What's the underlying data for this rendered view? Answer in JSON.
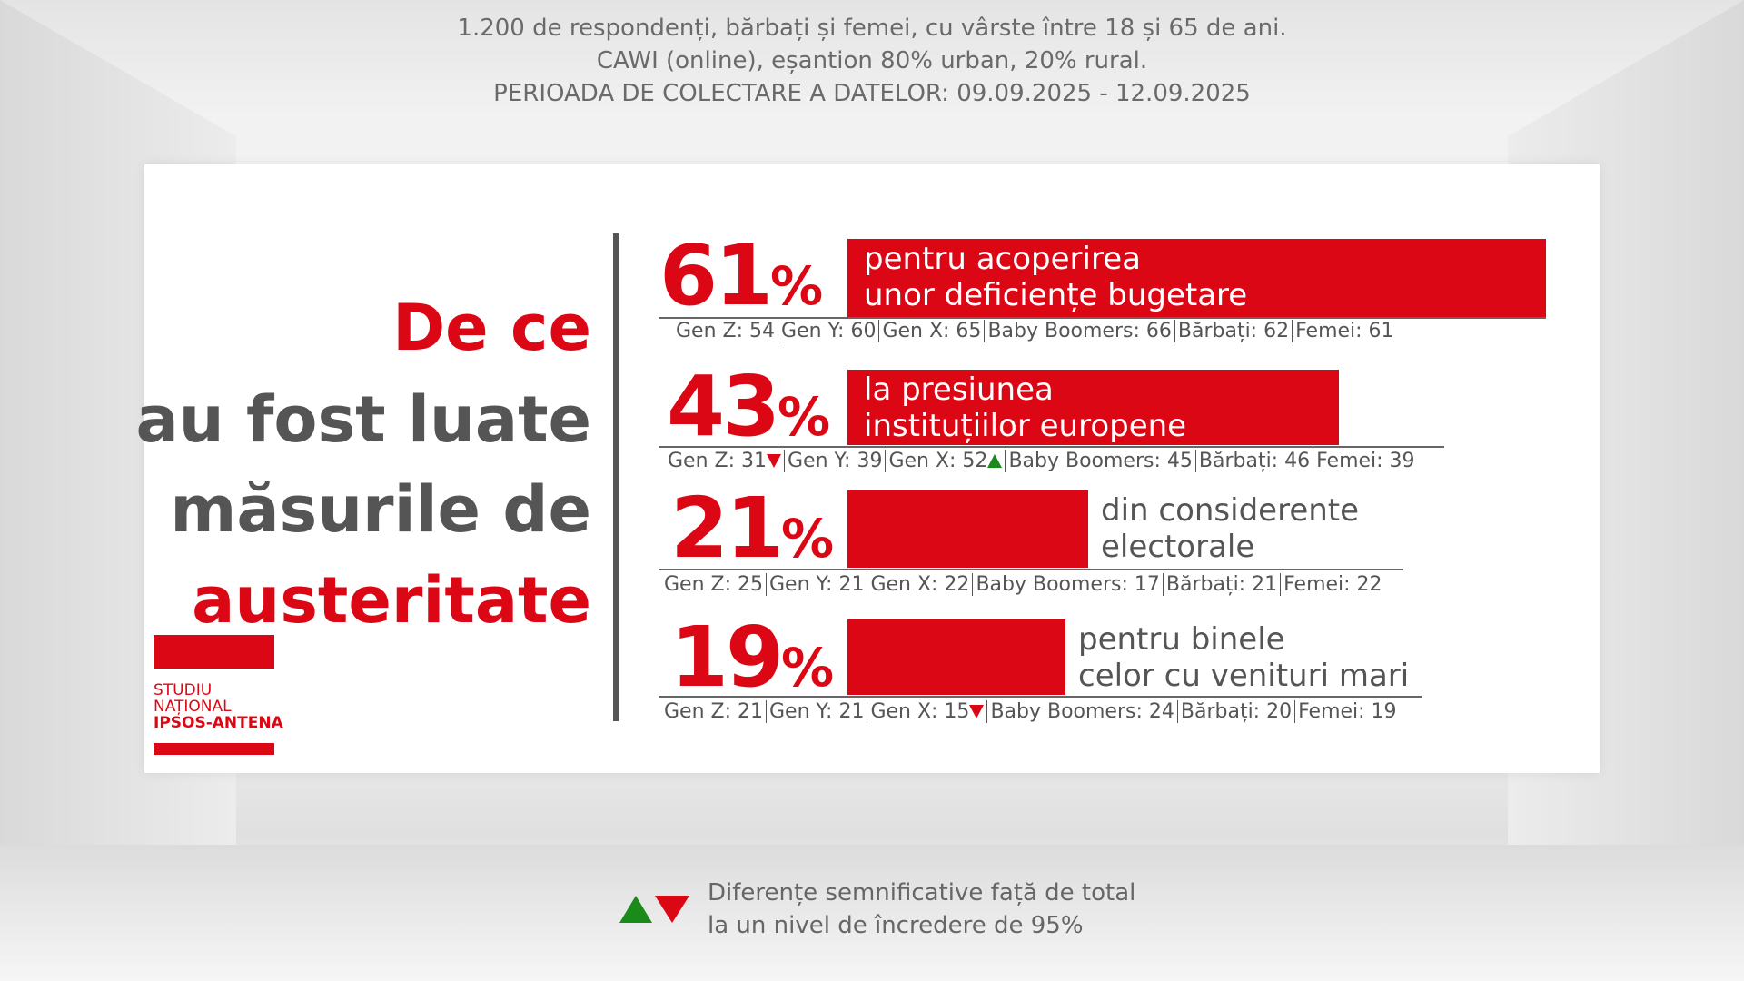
{
  "header": {
    "line1": "1.200 de respondenți, bărbați și femei, cu vârste între 18 și 65 de ani.",
    "line2": "CAWI (online), eșantion 80% urban, 20% rural.",
    "line3": "PERIOADA DE COLECTARE A DATELOR: 09.09.2025 - 12.09.2025"
  },
  "title": {
    "line1": "De ce",
    "line2": "au fost luate",
    "line3": "măsurile de",
    "line4": "austeritate"
  },
  "logo": {
    "line1": "STUDIU",
    "line2": "NAȚIONAL",
    "line3": "IPSOS-ANTENA"
  },
  "colors": {
    "accent": "#dc0714",
    "up": "#1a8a1a",
    "text": "#555555"
  },
  "rows": [
    {
      "value": "61",
      "pct": "%",
      "label1": "pentru acoperirea",
      "label2": "unor deficiențe bugetare",
      "subs": [
        "Gen Z: 54",
        "Gen Y: 60",
        "Gen X: 65",
        "Baby Boomers: 66",
        "Bărbați: 62",
        "Femei: 61"
      ]
    },
    {
      "value": "43",
      "pct": "%",
      "label1": "la presiunea",
      "label2": "instituțiilor europene",
      "subs": [
        "Gen Z: 31",
        "Gen Y: 39",
        "Gen X: 52",
        "Baby Boomers: 45",
        "Bărbați: 46",
        "Femei: 39"
      ]
    },
    {
      "value": "21",
      "pct": "%",
      "label1": "din considerente",
      "label2": "electorale",
      "subs": [
        "Gen Z: 25",
        "Gen Y: 21",
        "Gen X: 22",
        "Baby Boomers: 17",
        "Bărbați: 21",
        "Femei: 22"
      ]
    },
    {
      "value": "19",
      "pct": "%",
      "label1": "pentru binele",
      "label2": "celor cu venituri mari",
      "subs": [
        "Gen Z: 21",
        "Gen Y: 21",
        "Gen X: 15",
        "Baby Boomers: 24",
        "Bărbați: 20",
        "Femei: 19"
      ]
    }
  ],
  "legend": {
    "line1": "Diferențe semnificative față de total",
    "line2": "la un nivel de încredere de 95%"
  }
}
